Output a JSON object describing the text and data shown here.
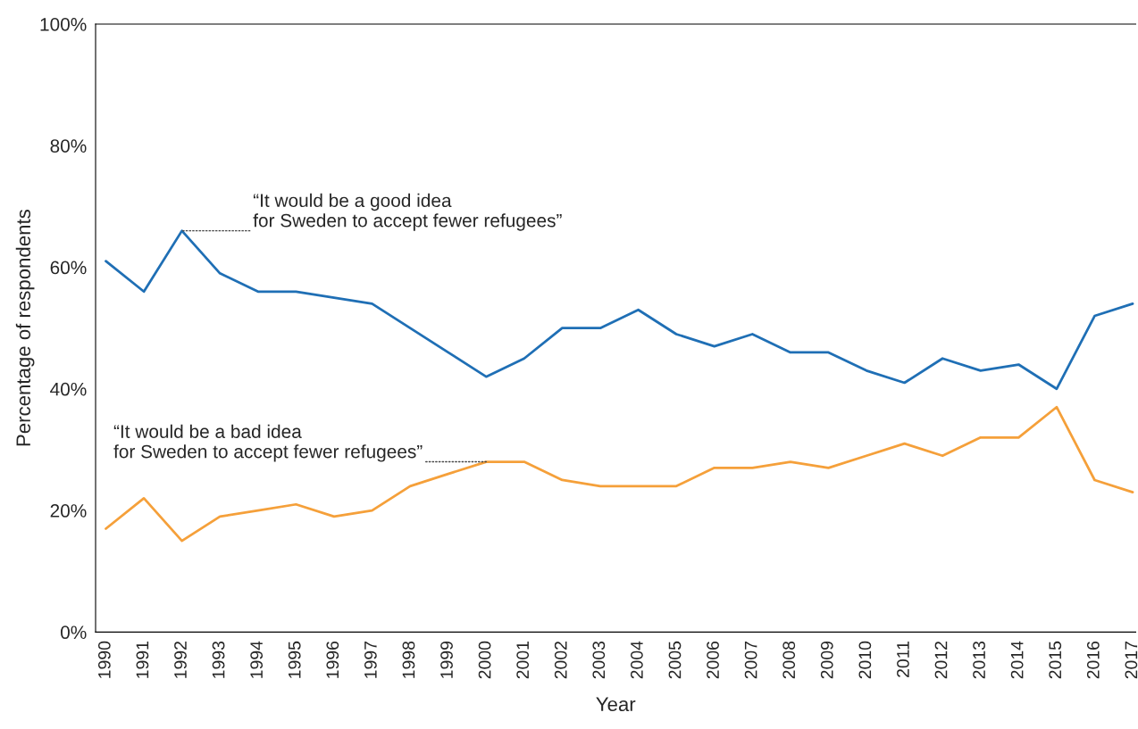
{
  "chart_data": {
    "type": "line",
    "xlabel": "Year",
    "ylabel": "Percentage of respondents",
    "categories": [
      "1990",
      "1991",
      "1992",
      "1993",
      "1994",
      "1995",
      "1996",
      "1997",
      "1998",
      "1999",
      "2000",
      "2001",
      "2002",
      "2003",
      "2004",
      "2005",
      "2006",
      "2007",
      "2008",
      "2009",
      "2010",
      "2011",
      "2012",
      "2013",
      "2014",
      "2015",
      "2016",
      "2017"
    ],
    "series": [
      {
        "color": "#1f6fb5",
        "values": [
          61,
          56,
          66,
          59,
          56,
          56,
          55,
          54,
          50,
          46,
          42,
          45,
          50,
          50,
          53,
          49,
          47,
          49,
          46,
          46,
          43,
          41,
          45,
          43,
          44,
          40,
          52,
          54
        ]
      },
      {
        "color": "#f5a03a",
        "values": [
          17,
          22,
          15,
          19,
          20,
          21,
          19,
          20,
          24,
          26,
          28,
          28,
          25,
          24,
          24,
          24,
          27,
          27,
          28,
          27,
          29,
          31,
          29,
          32,
          32,
          37,
          25,
          23
        ]
      }
    ],
    "ylim": [
      0,
      100
    ],
    "yticks": [
      {
        "value": 0,
        "label": "0%"
      },
      {
        "value": 20,
        "label": "20%"
      },
      {
        "value": 40,
        "label": "40%"
      },
      {
        "value": 60,
        "label": "60%"
      },
      {
        "value": 80,
        "label": "80%"
      },
      {
        "value": 100,
        "label": "100%"
      }
    ],
    "annotations": [
      {
        "text": "“It would be a good idea\nfor Sweden to accept fewer refugees”",
        "x": "1992",
        "y": 66
      },
      {
        "text": "“It would be a bad idea\nfor Sweden to accept fewer refugees”",
        "x": "2000",
        "y": 28
      }
    ],
    "grid": false,
    "legend": false
  }
}
